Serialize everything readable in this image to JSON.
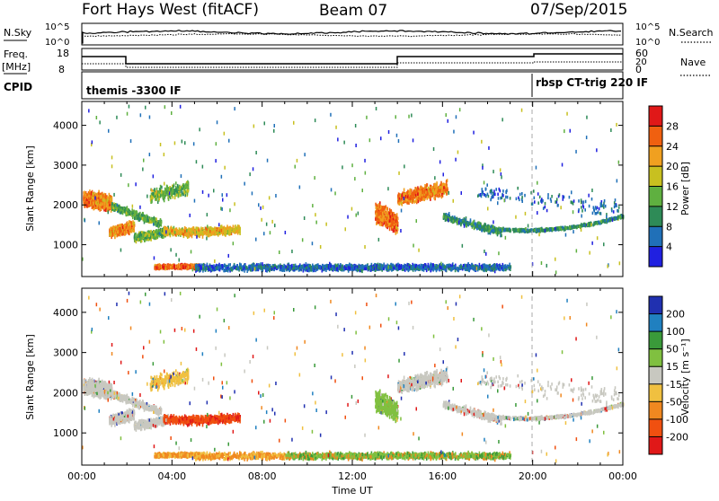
{
  "header": {
    "title": "Fort Hays West (fitACF)",
    "beam": "Beam 07",
    "date": "07/Sep/2015"
  },
  "top_panels": {
    "nsky_label": "N.Sky",
    "nsearch_label": "N.Search",
    "nsky_ticks": [
      "10^5",
      "10^0"
    ],
    "nsearch_ticks": [
      "10^5",
      "10^0"
    ],
    "freq_label": "Freq.",
    "freq_unit": "[MHz]",
    "freq_ticks": [
      "18",
      "8"
    ],
    "nave_label": "Nave",
    "nave_ticks": [
      "60",
      "20",
      "0"
    ],
    "cpid_label": "CPID",
    "cpid_left": "themis -3300 IF",
    "cpid_right": "rbsp CT-trig 220 IF"
  },
  "chart_data": [
    {
      "type": "heatmap",
      "panel": "power",
      "xlabel": "Time UT",
      "ylabel": "Slant Range [km]",
      "x_ticks": [
        "00:00",
        "04:00",
        "08:00",
        "12:00",
        "16:00",
        "20:00",
        "00:00"
      ],
      "y_ticks": [
        1000,
        2000,
        3000,
        4000
      ],
      "ylim": [
        200,
        4600
      ],
      "colorbar_label": "Power [dB]",
      "colorbar_ticks": [
        4,
        8,
        12,
        16,
        20,
        24,
        28
      ],
      "colorbar_range": [
        0,
        32
      ],
      "colors": [
        "#2020e0",
        "#2070b8",
        "#2e8b57",
        "#5fb040",
        "#c8c020",
        "#f0a020",
        "#f06010",
        "#e01818"
      ],
      "vline_hour": 19.9
    },
    {
      "type": "heatmap",
      "panel": "velocity",
      "xlabel": "Time UT",
      "ylabel": "Slant Range [km]",
      "x_ticks": [
        "00:00",
        "04:00",
        "08:00",
        "12:00",
        "16:00",
        "20:00",
        "00:00"
      ],
      "y_ticks": [
        1000,
        2000,
        3000,
        4000
      ],
      "ylim": [
        200,
        4600
      ],
      "colorbar_label": "Velocity [m s⁻¹]",
      "colorbar_ticks": [
        "-200",
        "-100",
        "-50",
        "-15",
        "15",
        "50",
        "100",
        "200"
      ],
      "colors": [
        "#e01818",
        "#f05010",
        "#f08820",
        "#f0c040",
        "#c8c8c0",
        "#80c040",
        "#3a9a3a",
        "#2080c0",
        "#2030b0"
      ],
      "vline_hour": 19.9
    }
  ]
}
